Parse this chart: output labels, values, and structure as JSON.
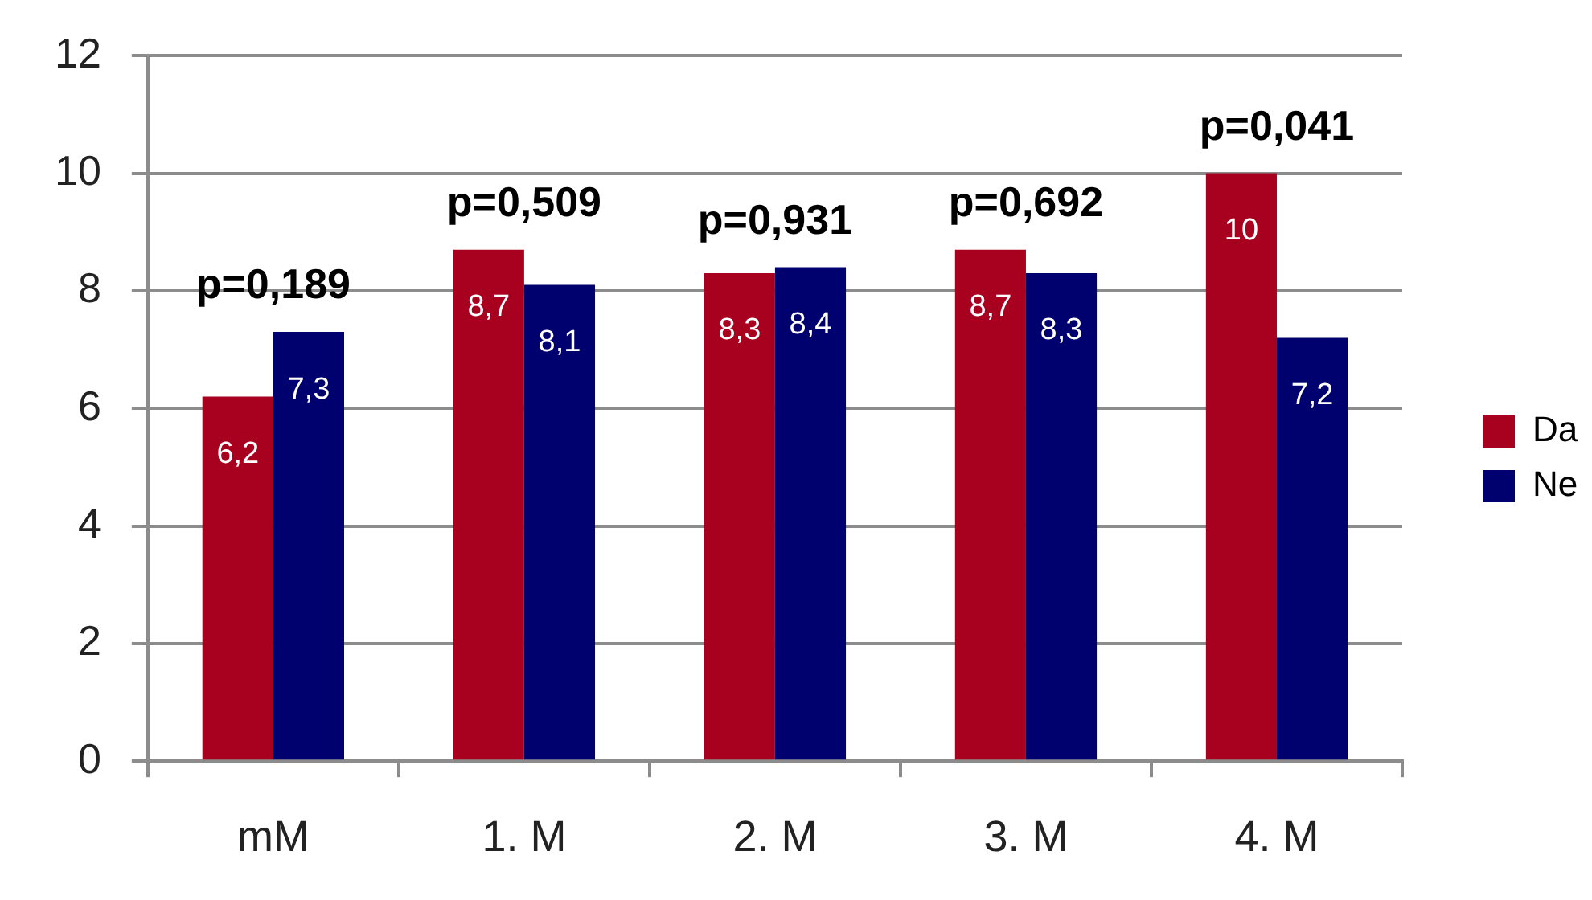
{
  "chart_data": {
    "type": "bar",
    "categories": [
      "mM",
      "1. M",
      "2. M",
      "3. M",
      "4. M"
    ],
    "series": [
      {
        "name": "Da",
        "color": "#a8001f",
        "values": [
          6.2,
          8.7,
          8.3,
          8.7,
          10
        ],
        "value_labels": [
          "6,2",
          "8,7",
          "8,3",
          "8,7",
          "10"
        ]
      },
      {
        "name": "Ne",
        "color": "#00006f",
        "values": [
          7.3,
          8.1,
          8.4,
          8.3,
          7.2
        ],
        "value_labels": [
          "7,3",
          "8,1",
          "8,4",
          "8,3",
          "7,2"
        ]
      }
    ],
    "ylim": [
      0,
      12
    ],
    "yticks": [
      0,
      2,
      4,
      6,
      8,
      10,
      12
    ],
    "grid": "y",
    "legend": "right",
    "annotations": [
      "p=0,189",
      "p=0,509",
      "p=0,931",
      "p=0,692",
      "p=0,041"
    ]
  }
}
